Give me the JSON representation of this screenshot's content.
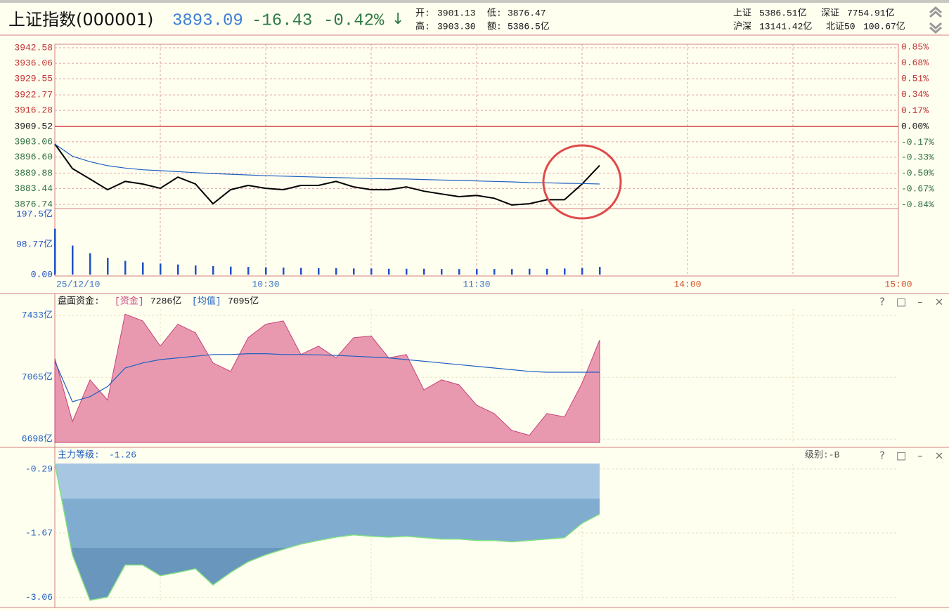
{
  "header": {
    "title": "上证指数(000001)",
    "price": "3893.09",
    "change": "-16.43",
    "percent": "-0.42%",
    "arrow": "↓",
    "open_label": "开:",
    "open": "3901.13",
    "low_label": "低:",
    "low": "3876.47",
    "high_label": "高:",
    "high": "3903.30",
    "amount_label": "额:",
    "amount": "5386.5亿",
    "sh_label": "上证",
    "sh": "5386.51亿",
    "sz_label": "深证",
    "sz": "7754.91亿",
    "hs_label": "沪深",
    "hs": "13141.42亿",
    "bz_label": "北证50",
    "bz": "100.67亿"
  },
  "buttons": [
    "?",
    "□",
    "–",
    "×"
  ],
  "chart_data": [
    {
      "type": "line",
      "xlim": [
        0,
        240
      ],
      "xticks": [
        {
          "value": 0,
          "label": "25/12/10"
        },
        {
          "value": 60,
          "label": "10:30"
        },
        {
          "value": 120,
          "label": "11:30"
        },
        {
          "value": 180,
          "label": "14:00"
        },
        {
          "value": 240,
          "label": "15:00"
        }
      ],
      "x": [
        0,
        5,
        10,
        15,
        20,
        25,
        30,
        35,
        40,
        45,
        50,
        55,
        60,
        65,
        70,
        75,
        80,
        85,
        90,
        95,
        100,
        105,
        110,
        115,
        120,
        125,
        130,
        135,
        140,
        145,
        150,
        155
      ],
      "ylim": [
        3874.97,
        3944.06
      ],
      "yticks": [
        3942.58,
        3936.06,
        3929.55,
        3922.77,
        3916.28,
        3909.52,
        3903.06,
        {
          "value": 3896.6,
          "label": "3896.60"
        },
        3889.88,
        3883.44,
        3876.74
      ],
      "y2lim": [
        -0.88,
        0.88
      ],
      "y2ticks": [
        {
          "value": 0.85,
          "label": "0.85%"
        },
        {
          "value": 0.68,
          "label": "0.68%"
        },
        {
          "value": 0.51,
          "label": "0.51%"
        },
        {
          "value": 0.34,
          "label": "0.34%"
        },
        {
          "value": 0.17,
          "label": "0.17%"
        },
        {
          "value": 0,
          "label": "0.00%"
        },
        {
          "value": -0.17,
          "label": "-0.17%"
        },
        {
          "value": -0.33,
          "label": "-0.33%"
        },
        {
          "value": -0.5,
          "label": "-0.50%"
        },
        {
          "value": -0.67,
          "label": "-0.67%"
        },
        {
          "value": -0.84,
          "label": "-0.84%"
        }
      ],
      "grid": true,
      "series": [
        {
          "color": "#000000",
          "values": [
            3902.12,
            3891.8,
            3887.4,
            3882.9,
            3886.4,
            3885.3,
            3883.5,
            3888.2,
            3885.3,
            3877.0,
            3882.9,
            3884.7,
            3883.5,
            3882.9,
            3884.7,
            3884.7,
            3886.4,
            3884.1,
            3882.9,
            3882.9,
            3884.1,
            3882.3,
            3881.1,
            3880.0,
            3880.5,
            3879.3,
            3876.5,
            3877.0,
            3878.7,
            3878.7,
            3885.3,
            3893.09
          ]
        },
        {
          "color": "#2060c0",
          "values": [
            3902.1,
            3897.0,
            3894.7,
            3893.0,
            3892.0,
            3891.3,
            3890.9,
            3890.5,
            3890.1,
            3889.7,
            3889.4,
            3889.1,
            3888.8,
            3888.6,
            3888.4,
            3888.2,
            3888.0,
            3887.8,
            3887.6,
            3887.5,
            3887.4,
            3887.2,
            3887.0,
            3886.8,
            3886.6,
            3886.4,
            3886.2,
            3885.9,
            3885.8,
            3885.6,
            3885.5,
            3885.3
          ]
        }
      ]
    },
    {
      "type": "bar",
      "color": "#2050c8",
      "x": [
        0,
        5,
        10,
        15,
        20,
        25,
        30,
        35,
        40,
        45,
        50,
        55,
        60,
        65,
        70,
        75,
        80,
        85,
        90,
        95,
        100,
        105,
        110,
        115,
        120,
        125,
        130,
        135,
        140,
        145,
        150,
        155
      ],
      "ylim": [
        0,
        215.9
      ],
      "yticks": [
        {
          "value": 197.5,
          "label": "197.5亿"
        },
        {
          "value": 98.77,
          "label": "98.77亿"
        },
        {
          "value": 0,
          "label": "0.00"
        }
      ],
      "values": [
        150,
        95,
        70,
        55,
        45,
        40,
        36,
        33,
        30,
        28,
        26,
        25,
        24,
        23,
        22,
        21,
        21,
        20,
        20,
        19,
        19,
        19,
        18,
        18,
        18,
        18,
        18,
        19,
        19,
        20,
        22,
        25
      ]
    },
    {
      "type": "area",
      "title": "盘面资金:",
      "x": [
        0,
        5,
        10,
        15,
        20,
        25,
        30,
        35,
        40,
        45,
        50,
        55,
        60,
        65,
        70,
        75,
        80,
        85,
        90,
        95,
        100,
        105,
        110,
        115,
        120,
        125,
        130,
        135,
        140,
        145,
        150,
        155
      ],
      "ylim": [
        6678,
        7462
      ],
      "yticks": [
        {
          "value": 7433,
          "label": "7433亿"
        },
        {
          "value": 7065,
          "label": "7065亿"
        },
        {
          "value": 6698,
          "label": "6698亿"
        }
      ],
      "grid": true,
      "series": [
        {
          "name": "[资金]",
          "value_label": "7286亿",
          "color": "#c8407a",
          "values": [
            7178,
            6802,
            7050,
            6930,
            7440,
            7400,
            7250,
            7380,
            7330,
            7150,
            7100,
            7300,
            7380,
            7400,
            7200,
            7250,
            7180,
            7300,
            7310,
            7180,
            7200,
            6990,
            7050,
            7020,
            6900,
            6850,
            6750,
            6720,
            6850,
            6830,
            7030,
            7286
          ]
        },
        {
          "name": "[均值]",
          "value_label": "7095亿",
          "color": "#2060c0",
          "values": [
            7160,
            6920,
            6950,
            7010,
            7120,
            7150,
            7170,
            7180,
            7190,
            7200,
            7200,
            7205,
            7205,
            7200,
            7200,
            7198,
            7195,
            7190,
            7185,
            7180,
            7170,
            7160,
            7150,
            7140,
            7130,
            7120,
            7110,
            7100,
            7095,
            7095,
            7095,
            7095
          ]
        }
      ]
    },
    {
      "type": "bands",
      "title": "主力等级:",
      "value_label": "-1.26",
      "level": "级别:-B",
      "x": [
        0,
        5,
        10,
        15,
        20,
        25,
        30,
        35,
        40,
        45,
        50,
        55,
        60,
        65,
        70,
        75,
        80,
        85,
        90,
        95,
        100,
        105,
        110,
        115,
        120,
        125,
        130,
        135,
        140,
        145,
        150,
        155
      ],
      "ylim": [
        -3.17,
        -0.17
      ],
      "yticks": [
        -0.29,
        -1.67,
        -3.06
      ],
      "grid": true,
      "color": "#80e080",
      "band_colors": [
        "#a6c6e2",
        "#80acd0",
        "#6896bc"
      ],
      "values": [
        -0.17,
        -2.14,
        -3.12,
        -3.05,
        -2.36,
        -2.36,
        -2.59,
        -2.52,
        -2.44,
        -2.79,
        -2.52,
        -2.29,
        -2.14,
        -2.02,
        -1.91,
        -1.83,
        -1.76,
        -1.71,
        -1.74,
        -1.76,
        -1.74,
        -1.77,
        -1.8,
        -1.8,
        -1.83,
        -1.83,
        -1.86,
        -1.83,
        -1.8,
        -1.77,
        -1.46,
        -1.26
      ]
    }
  ]
}
